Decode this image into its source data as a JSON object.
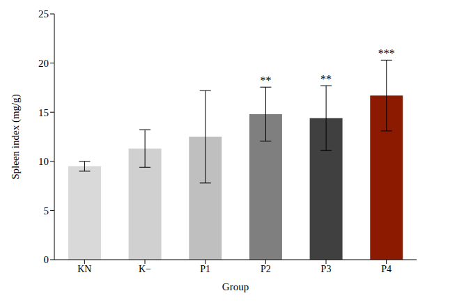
{
  "chart_data": {
    "type": "bar",
    "x_label": "Group",
    "y_label": "Spleen index (mg/g)",
    "categories": [
      "KN",
      "K−",
      "P1",
      "P2",
      "P3",
      "P4"
    ],
    "values": [
      9.5,
      11.3,
      12.5,
      14.8,
      14.4,
      16.7
    ],
    "error": [
      0.5,
      1.9,
      4.7,
      2.75,
      3.3,
      3.6
    ],
    "significance": [
      null,
      null,
      null,
      "**",
      "**",
      "***"
    ],
    "colors": [
      "#d9d9d9",
      "#d0d0d0",
      "#bfbfbf",
      "#7f7f7f",
      "#404040",
      "#8b1a00"
    ],
    "ylim": [
      0,
      25
    ],
    "yticks": [
      0,
      5,
      10,
      15,
      20,
      25
    ],
    "grid": false
  }
}
